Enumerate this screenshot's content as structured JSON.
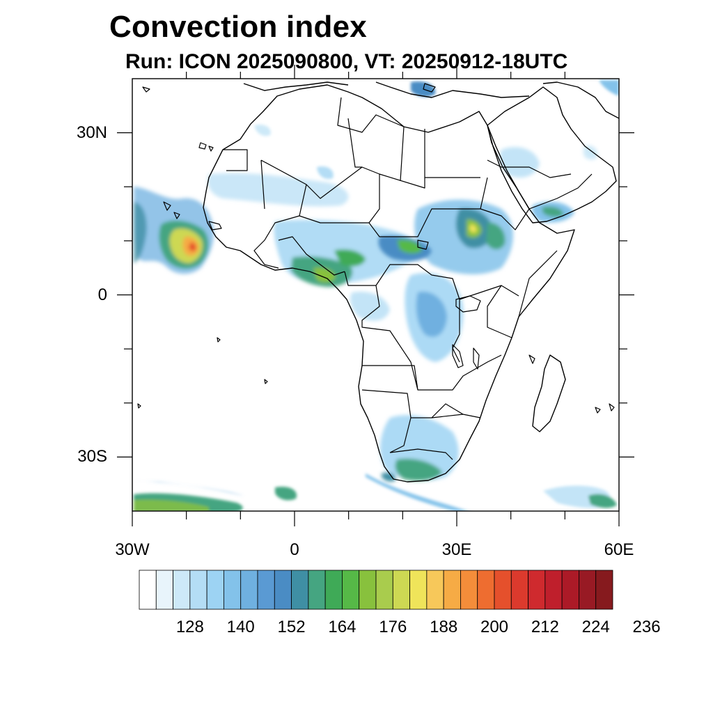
{
  "header": {
    "title": "Convection index",
    "subtitle": "Run: ICON 2025090800,  VT: 20250912-18UTC"
  },
  "map": {
    "region": "Africa",
    "lon_range": [
      -30,
      60
    ],
    "lat_range": [
      -40,
      40
    ],
    "lat_ticks": [
      {
        "value": 30,
        "label": "30N"
      },
      {
        "value": 0,
        "label": "0"
      },
      {
        "value": -30,
        "label": "30S"
      }
    ],
    "lon_ticks": [
      {
        "value": -30,
        "label": "30W"
      },
      {
        "value": 0,
        "label": "0"
      },
      {
        "value": 30,
        "label": "30E"
      },
      {
        "value": 60,
        "label": "60E"
      }
    ]
  },
  "colorbar": {
    "colors": [
      "#ffffff",
      "#e8f4fb",
      "#cde9f8",
      "#b4ddf5",
      "#9dd3f3",
      "#83c2ea",
      "#6fb0e0",
      "#5a9ad3",
      "#4a8cc4",
      "#3f8fa4",
      "#45a581",
      "#3faa57",
      "#56b947",
      "#88c13d",
      "#a9cc4d",
      "#cdd853",
      "#efe45a",
      "#f7c85a",
      "#f6ab45",
      "#f48d3a",
      "#ee6d30",
      "#e5502c",
      "#dc3a2d",
      "#cf2a2e",
      "#bf1f2c",
      "#ac1a27",
      "#981a24",
      "#861a1e"
    ],
    "labels": [
      "128",
      "140",
      "152",
      "164",
      "176",
      "188",
      "200",
      "212",
      "224",
      "236"
    ]
  }
}
